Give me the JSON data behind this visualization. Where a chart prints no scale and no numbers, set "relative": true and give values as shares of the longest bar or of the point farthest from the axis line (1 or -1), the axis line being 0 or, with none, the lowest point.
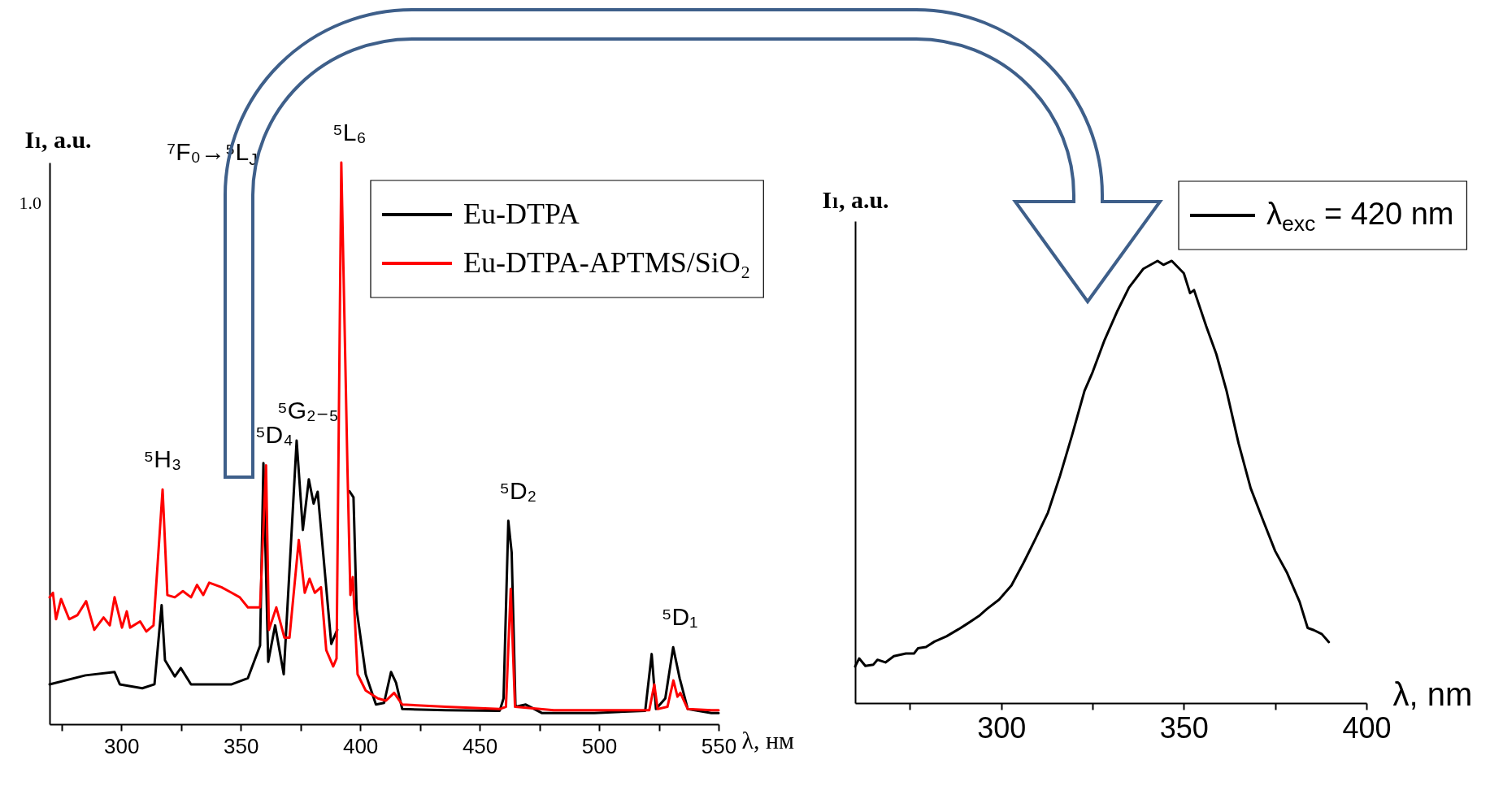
{
  "chart_data": [
    {
      "type": "line",
      "xlabel": "λ, нм",
      "ylabel": "Iₗ, a.u.",
      "relative": true,
      "xlim": [
        270,
        550
      ],
      "xticks": [
        {
          "value": 275,
          "label": null
        },
        300,
        {
          "value": 325,
          "label": null
        },
        350,
        {
          "value": 375,
          "label": null
        },
        400,
        {
          "value": 425,
          "label": null
        },
        450,
        {
          "value": 475,
          "label": null
        },
        500,
        {
          "value": 525,
          "label": null
        },
        550
      ],
      "legend": "top right",
      "series": [
        {
          "name": "Eu-DTPA",
          "color": "#000000",
          "x": [
            270,
            285,
            297.2,
            299.4,
            308.8,
            313.9,
            316.9,
            318.3,
            322.4,
            324.9,
            329.2,
            336,
            346.2,
            353,
            358.1,
            359.5,
            361.5,
            364.4,
            368,
            373.4,
            376,
            378.5,
            380.5,
            382.2,
            387.9,
            390.4,
            392.1,
            395.5,
            397.2,
            398.5,
            402.3,
            406.6,
            410,
            412.9,
            415,
            417.6,
            435.8,
            458.4,
            460,
            462,
            463.4,
            465,
            469.3,
            476,
            498,
            519.3,
            522,
            523.8,
            527.7,
            531,
            533.7,
            537.1,
            547,
            550
          ],
          "values": [
            0.071,
            0.087,
            0.093,
            0.071,
            0.064,
            0.071,
            0.212,
            0.114,
            0.085,
            0.1,
            0.071,
            0.071,
            0.071,
            0.082,
            0.14,
            0.465,
            0.111,
            0.176,
            0.089,
            0.505,
            0.346,
            0.436,
            0.393,
            0.414,
            0.143,
            0.168,
            null,
            0.415,
            0.404,
            0.205,
            0.089,
            0.035,
            0.038,
            0.093,
            0.074,
            0.027,
            0.025,
            0.024,
            0.046,
            0.362,
            0.306,
            0.031,
            0.035,
            0.02,
            0.02,
            0.024,
            0.125,
            0.027,
            0.046,
            0.137,
            0.082,
            0.027,
            0.02,
            0.02
          ]
        },
        {
          "name": "Eu-DTPA-APTMS/SiO₂",
          "color": "#ff0000",
          "x": [
            270,
            271.4,
            272.7,
            274.8,
            278.2,
            281.6,
            285.3,
            288.7,
            292.6,
            295.2,
            297.2,
            300.3,
            302.3,
            303.7,
            307.9,
            310.5,
            313.5,
            317.3,
            319.3,
            322.4,
            325.8,
            329.2,
            331.7,
            334.3,
            336.8,
            341.9,
            346.2,
            349.6,
            353,
            358.1,
            360.6,
            361.8,
            364.9,
            368.3,
            370.4,
            374.3,
            376.8,
            378.8,
            381,
            383.6,
            385.8,
            388.7,
            390.1,
            392.1,
            394.7,
            395.9,
            396.9,
            398.9,
            402.3,
            407.4,
            410.8,
            414.2,
            417.6,
            435.8,
            458.4,
            461,
            463,
            464.8,
            481,
            521,
            523.1,
            524.5,
            528.6,
            531.1,
            532.8,
            534,
            537.1,
            547,
            550
          ],
          "values": [
            0.226,
            0.234,
            0.187,
            0.223,
            0.187,
            0.194,
            0.219,
            0.168,
            0.19,
            0.176,
            0.226,
            0.172,
            0.201,
            0.172,
            0.183,
            0.165,
            0.176,
            0.418,
            0.23,
            0.226,
            0.237,
            0.226,
            0.248,
            0.23,
            0.252,
            0.244,
            0.234,
            0.226,
            0.208,
            0.208,
            0.461,
            0.168,
            0.208,
            0.154,
            0.154,
            0.328,
            0.234,
            0.259,
            0.234,
            0.244,
            0.132,
            0.103,
            0.117,
            1,
            0.45,
            0.23,
            0.262,
            0.089,
            0.06,
            0.046,
            0.042,
            0.056,
            0.035,
            0.031,
            0.027,
            0.031,
            0.241,
            0.031,
            0.025,
            0.025,
            0.071,
            0.027,
            0.031,
            0.078,
            0.049,
            0.056,
            0.027,
            0.025,
            0.025
          ]
        }
      ],
      "annotations": [
        "1.0",
        "⁷F₀→⁵L$_{J}$",
        {
          "text": "⁵H₃",
          "x": 317.3,
          "y": 0.418
        },
        {
          "text": "⁵D₄",
          "x": 360.6,
          "y": 0.461
        },
        {
          "text": "⁵G₂₋₅",
          "x": 373.4,
          "y": 0.505
        },
        {
          "text": "⁵L₆",
          "x": 392.1,
          "y": 1
        },
        {
          "text": "⁵D₂",
          "x": 462,
          "y": 0.362
        },
        {
          "text": "⁵D₁",
          "x": 531,
          "y": 0.137
        }
      ]
    },
    {
      "type": "line",
      "xlabel": "λ, nm",
      "ylabel": "Iₗ, a.u.",
      "relative": true,
      "xlim": [
        260,
        400
      ],
      "xticks": [
        {
          "value": 275,
          "label": null
        },
        300,
        {
          "value": 325,
          "label": null
        },
        350,
        {
          "value": 375,
          "label": null
        },
        400
      ],
      "legend": "top right",
      "series": [
        {
          "name": "λ$_{exc}$ = 420 nm",
          "color": "#000000",
          "x": [
            260,
            261.1,
            262.8,
            265,
            266.1,
            268.3,
            270.6,
            273.9,
            276.1,
            277.2,
            279.4,
            281.7,
            285,
            288.3,
            290.6,
            293.9,
            296.1,
            299.4,
            302.8,
            306.1,
            309.4,
            312.8,
            316.1,
            319.4,
            322.8,
            325,
            328.3,
            331.7,
            335,
            338.9,
            342.8,
            344.4,
            346.7,
            350,
            351.7,
            352.8,
            356.1,
            358.9,
            361.7,
            365,
            368.3,
            371.7,
            375,
            378.3,
            381.7,
            383.9,
            385.6,
            387.8,
            389.7
          ],
          "values": [
            0.083,
            0.101,
            0.084,
            0.087,
            0.098,
            0.092,
            0.106,
            0.112,
            0.112,
            0.124,
            0.127,
            0.139,
            0.151,
            0.167,
            0.179,
            0.197,
            0.213,
            0.234,
            0.266,
            0.317,
            0.372,
            0.431,
            0.514,
            0.606,
            0.706,
            0.748,
            0.821,
            0.885,
            0.94,
            0.982,
            1,
            0.991,
            1,
            0.972,
            0.927,
            0.934,
            0.853,
            0.789,
            0.706,
            0.587,
            0.486,
            0.413,
            0.344,
            0.294,
            0.229,
            0.17,
            0.165,
            0.156,
            0.138
          ]
        }
      ]
    }
  ]
}
